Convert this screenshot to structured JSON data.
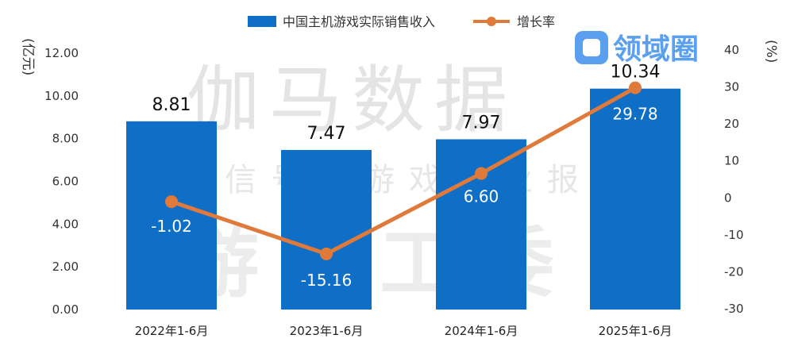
{
  "legend": {
    "bar_label": "中国主机游戏实际销售收入",
    "line_label": "增长率"
  },
  "axes": {
    "left_unit": "(亿元)",
    "right_unit": "(%)"
  },
  "watermark": {
    "line1": "伽马数据",
    "line2": "微信号：游戏产业报告",
    "line3": "游戏工委"
  },
  "logo": {
    "text": "领域圈"
  },
  "colors": {
    "bar": "#0F6FC6",
    "line": "#E07A3A",
    "watermark": "#e4e4e4"
  },
  "chart_data": {
    "type": "bar",
    "categories": [
      "2022年1-6月",
      "2023年1-6月",
      "2024年1-6月",
      "2025年1-6月"
    ],
    "series": [
      {
        "name": "中国主机游戏实际销售收入",
        "type": "bar",
        "axis": "left",
        "values": [
          8.81,
          7.47,
          7.97,
          10.34
        ],
        "labels": [
          "8.81",
          "7.47",
          "7.97",
          "10.34"
        ]
      },
      {
        "name": "增长率",
        "type": "line",
        "axis": "right",
        "values": [
          -1.02,
          -15.16,
          6.6,
          29.78
        ],
        "labels": [
          "-1.02",
          "-15.16",
          "6.60",
          "29.78"
        ]
      }
    ],
    "y_left": {
      "ylim": [
        0,
        12
      ],
      "ticks": [
        "0.00",
        "2.00",
        "4.00",
        "6.00",
        "8.00",
        "10.00",
        "12.00"
      ]
    },
    "y_right": {
      "ylim": [
        -30,
        40
      ],
      "ticks": [
        "-30",
        "-20",
        "-10",
        "0",
        "10",
        "20",
        "30",
        "40"
      ]
    },
    "legend_position": "top",
    "grid": false
  }
}
